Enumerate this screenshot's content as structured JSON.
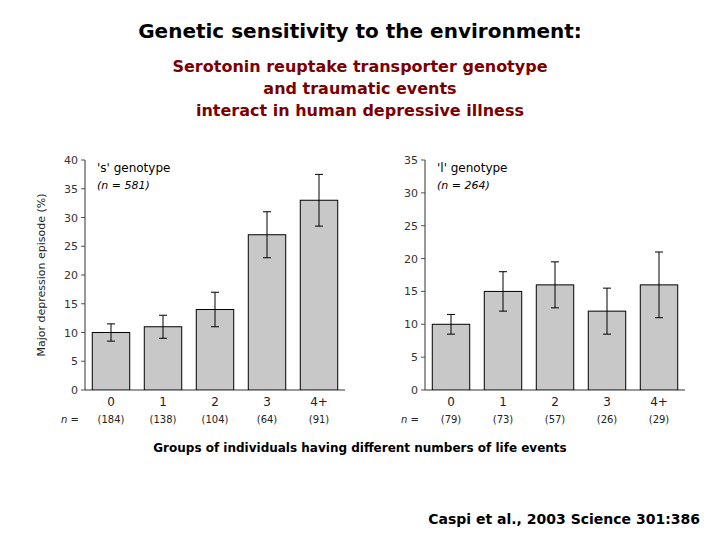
{
  "chart_data": [
    {
      "type": "bar",
      "title": "Genetic sensitivity to the environment:",
      "subtitle": [
        "Serotonin reuptake transporter genotype",
        "and traumatic events",
        "interact in human depressive illness"
      ],
      "xlabel": "Groups of individuals having different numbers of life events",
      "ylabel": "Major depression episode (%)",
      "source": "Caspi et al., 2003 Science 301:386",
      "annotations": [
        "'s' genotype",
        "(n = 581)"
      ],
      "categories": [
        "0",
        "1",
        "2",
        "3",
        "4+"
      ],
      "values": [
        10.0,
        11.0,
        14.0,
        27.0,
        33.0
      ],
      "errors": [
        1.5,
        2.0,
        3.0,
        4.0,
        4.5
      ],
      "n_prefix": "n =",
      "n_labels": [
        "(184)",
        "(138)",
        "(104)",
        "(64)",
        "(91)"
      ],
      "color": "#C8C8C8",
      "ylim": [
        0,
        40
      ],
      "yticks": [
        0,
        5,
        10,
        15,
        20,
        25,
        30,
        35,
        40
      ]
    },
    {
      "type": "bar",
      "annotations": [
        "'l' genotype",
        "(n = 264)"
      ],
      "categories": [
        "0",
        "1",
        "2",
        "3",
        "4+"
      ],
      "values": [
        10.0,
        15.0,
        16.0,
        12.0,
        16.0
      ],
      "errors": [
        1.5,
        3.0,
        3.5,
        3.5,
        5.0
      ],
      "n_prefix": "n =",
      "n_labels": [
        "(79)",
        "(73)",
        "(57)",
        "(26)",
        "(29)"
      ],
      "color": "#C8C8C8",
      "ylim": [
        0,
        35
      ],
      "yticks": [
        0,
        5,
        10,
        15,
        20,
        25,
        30,
        35
      ]
    }
  ]
}
